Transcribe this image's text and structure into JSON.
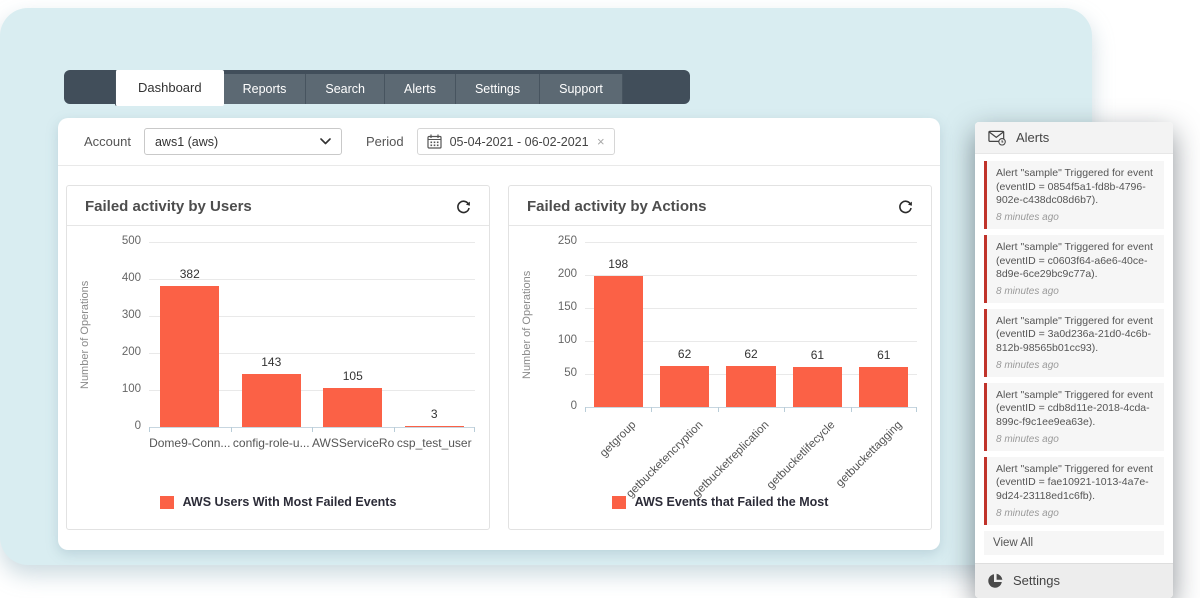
{
  "nav": {
    "tabs": [
      {
        "label": "Dashboard",
        "active": true
      },
      {
        "label": "Reports",
        "active": false
      },
      {
        "label": "Search",
        "active": false
      },
      {
        "label": "Alerts",
        "active": false
      },
      {
        "label": "Settings",
        "active": false
      },
      {
        "label": "Support",
        "active": false
      }
    ]
  },
  "filters": {
    "account": {
      "label": "Account",
      "value": "aws1 (aws)"
    },
    "period": {
      "label": "Period",
      "value": "05-04-2021 - 06-02-2021",
      "clear": "×"
    }
  },
  "chart_data": [
    {
      "type": "bar",
      "title": "Failed activity by Users",
      "categories": [
        "Dome9-Conn...",
        "config-role-u...",
        "AWSServiceRo...",
        "csp_test_user"
      ],
      "values": [
        382,
        143,
        105,
        3
      ],
      "xlabel": "",
      "ylabel": "Number of Operations",
      "ylim": [
        0,
        500
      ],
      "yticks": [
        0,
        100,
        200,
        300,
        400,
        500
      ],
      "legend": "AWS Users With Most Failed Events",
      "legend_position": "bottom",
      "grid": true,
      "bar_color": "#fb6146"
    },
    {
      "type": "bar",
      "title": "Failed activity by Actions",
      "categories": [
        "getgroup",
        "getbucketencryption",
        "getbucketreplication",
        "getbucketlifecycle",
        "getbuckettagging"
      ],
      "values": [
        198,
        62,
        62,
        61,
        61
      ],
      "xlabel": "",
      "ylabel": "Number of Operations",
      "ylim": [
        0,
        250
      ],
      "yticks": [
        0,
        50,
        100,
        150,
        200,
        250
      ],
      "legend": "AWS Events that Failed the Most",
      "legend_position": "bottom",
      "grid": true,
      "bar_color": "#fb6146"
    }
  ],
  "sidebar": {
    "alerts_title": "Alerts",
    "alerts_icon": "envelope-clock",
    "alerts": [
      {
        "text": "Alert \"sample\" Triggered for event (eventID = 0854f5a1-fd8b-4796-902e-c438dc08d6b7).",
        "time": "8 minutes ago"
      },
      {
        "text": "Alert \"sample\" Triggered for event (eventID = c0603f64-a6e6-40ce-8d9e-6ce29bc9c77a).",
        "time": "8 minutes ago"
      },
      {
        "text": "Alert \"sample\" Triggered for event (eventID = 3a0d236a-21d0-4c6b-812b-98565b01cc93).",
        "time": "8 minutes ago"
      },
      {
        "text": "Alert \"sample\" Triggered for event (eventID = cdb8d11e-2018-4cda-899c-f9c1ee9ea63e).",
        "time": "8 minutes ago"
      },
      {
        "text": "Alert \"sample\" Triggered for event (eventID = fae10921-1013-4a7e-9d24-23118ed1c6fb).",
        "time": "8 minutes ago"
      }
    ],
    "view_all": "View All",
    "settings_label": "Settings",
    "settings_icon": "pie-chart"
  },
  "colors": {
    "bar_orange": "#fb6146",
    "alert_red": "#c0332b",
    "navbar_dark": "#414e5a",
    "tab_gray": "#5c6973",
    "canvas_blue": "#d9edf1"
  }
}
